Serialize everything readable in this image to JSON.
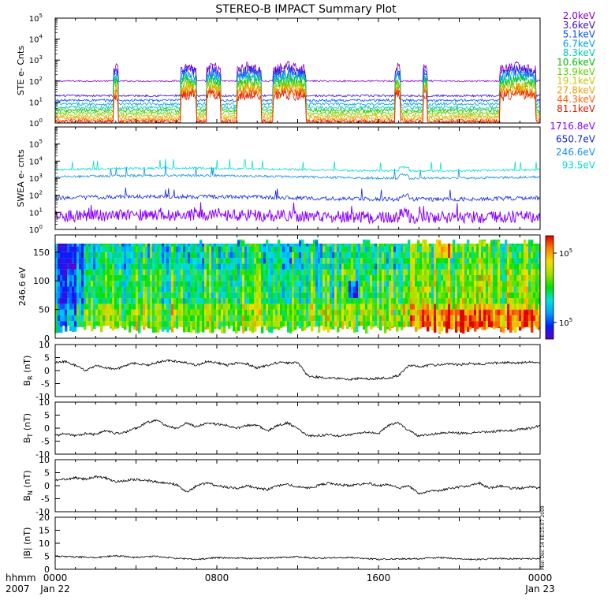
{
  "title": "STEREO-B IMPACT Summary Plot",
  "time_axis": {
    "header": [
      "hhmm",
      "2007"
    ],
    "ticks": [
      {
        "hour": 0,
        "hhmm": "0000",
        "date": "Jan 22"
      },
      {
        "hour": 8,
        "hhmm": "0800",
        "date": ""
      },
      {
        "hour": 16,
        "hhmm": "1600",
        "date": ""
      },
      {
        "hour": 24,
        "hhmm": "0000",
        "date": "Jan 23"
      }
    ]
  },
  "timestamp": "Mon Dec 14 08:25:07 2009",
  "colors": {
    "ste": [
      "#8a00c8",
      "#3c0cc8",
      "#0050ff",
      "#00a0e0",
      "#00c8b0",
      "#00c000",
      "#60d000",
      "#c8c800",
      "#f0a000",
      "#ff6400",
      "#e01800"
    ],
    "swea": [
      "#8a00ff",
      "#1028e0",
      "#1890e8",
      "#00e0d0"
    ],
    "colorbar": [
      "#5a00c8",
      "#0020ff",
      "#00a0ff",
      "#00e0e0",
      "#00e000",
      "#a0e000",
      "#f0e000",
      "#ff8000",
      "#e00000"
    ]
  },
  "chart_data": [
    {
      "type": "line",
      "name": "ste",
      "ylabel": "STE e- Cnts",
      "yscale": "log",
      "ylim": [
        1,
        100000
      ],
      "yticks": [
        {
          "v": 1,
          "m": "0"
        },
        {
          "v": 10,
          "m": "1"
        },
        {
          "v": 100,
          "m": "2"
        },
        {
          "v": 1000,
          "m": "3"
        },
        {
          "v": 10000,
          "m": "4"
        },
        {
          "v": 100000,
          "m": "5"
        }
      ],
      "series": [
        {
          "name": "2.0keV",
          "base": 100,
          "burst": 1.0,
          "noise": 0.04
        },
        {
          "name": "3.6keV",
          "base": 20,
          "burst": 0.95,
          "noise": 0.05
        },
        {
          "name": "5.1keV",
          "base": 12,
          "burst": 0.9,
          "noise": 0.06
        },
        {
          "name": "6.7keV",
          "base": 8,
          "burst": 0.85,
          "noise": 0.07
        },
        {
          "name": "8.3keV",
          "base": 5.5,
          "burst": 0.8,
          "noise": 0.08
        },
        {
          "name": "10.6keV",
          "base": 4,
          "burst": 0.75,
          "noise": 0.08
        },
        {
          "name": "13.9keV",
          "base": 3,
          "burst": 0.7,
          "noise": 0.09
        },
        {
          "name": "19.1keV",
          "base": 2.2,
          "burst": 0.65,
          "noise": 0.09
        },
        {
          "name": "27.8keV",
          "base": 1.7,
          "burst": 0.6,
          "noise": 0.1
        },
        {
          "name": "44.3keV",
          "base": 1.3,
          "burst": 0.55,
          "noise": 0.1
        },
        {
          "name": "81.1keV",
          "base": 1.1,
          "burst": 0.5,
          "noise": 0.1
        }
      ],
      "bursts": [
        [
          2.9,
          3.1
        ],
        [
          6.2,
          7.0
        ],
        [
          7.5,
          8.2
        ],
        [
          9.0,
          10.2
        ],
        [
          10.8,
          12.4
        ],
        [
          16.8,
          17.1
        ],
        [
          18.2,
          18.4
        ],
        [
          22.0,
          23.8
        ]
      ]
    },
    {
      "type": "line",
      "name": "swea",
      "ylabel": "SWEA e- cnts",
      "yscale": "log",
      "ylim": [
        1,
        1000000
      ],
      "yticks": [
        {
          "v": 1,
          "m": "0"
        },
        {
          "v": 10,
          "m": "1"
        },
        {
          "v": 100,
          "m": "2"
        },
        {
          "v": 1000,
          "m": "3"
        },
        {
          "v": 10000,
          "m": "4"
        },
        {
          "v": 100000,
          "m": "5"
        }
      ],
      "series": [
        {
          "name": "1716.8eV",
          "base": 6,
          "noise": 0.35
        },
        {
          "name": "650.7eV",
          "base": 70,
          "noise": 0.12
        },
        {
          "name": "246.6eV",
          "base": 1200,
          "noise": 0.07
        },
        {
          "name": "93.5eV",
          "base": 3200,
          "noise": 0.06
        }
      ]
    },
    {
      "type": "heatmap",
      "name": "pad",
      "ylabel": "246.6 eV",
      "ylim": [
        0,
        180
      ],
      "yticks": [
        0,
        50,
        100,
        150
      ],
      "colorbar_labels": [
        {
          "pos": "top",
          "base": "10",
          "exp": "5"
        },
        {
          "pos": "bottom",
          "base": "10",
          "exp": "5"
        }
      ]
    },
    {
      "type": "line",
      "name": "br",
      "ylabel": "B",
      "ylabel_sub": "R",
      "ylabel_unit": " (nT)",
      "ylim": [
        -10,
        10
      ],
      "yticks": [
        -10,
        -5,
        0,
        5,
        10
      ],
      "x": [
        0,
        0.5,
        1,
        1.5,
        2,
        2.5,
        3,
        3.5,
        4,
        4.5,
        5,
        5.5,
        6,
        6.5,
        7,
        7.5,
        8,
        8.5,
        9,
        9.5,
        10,
        10.5,
        11,
        11.5,
        12,
        12.5,
        13,
        13.5,
        14,
        14.5,
        15,
        15.5,
        16,
        16.5,
        17,
        17.5,
        18,
        18.5,
        19,
        19.5,
        20,
        20.5,
        21,
        21.5,
        22,
        22.5,
        23,
        23.5,
        24
      ],
      "y": [
        3,
        3.5,
        2,
        0,
        2,
        1,
        0.5,
        2,
        3,
        2,
        3,
        4,
        3.5,
        3,
        2,
        3.5,
        3,
        2,
        3,
        2.5,
        1,
        2,
        3,
        3,
        3,
        -2,
        -2.5,
        -3,
        -3,
        -3.5,
        -3,
        -3.2,
        -3,
        -2.8,
        -2,
        2,
        1.5,
        2,
        2.2,
        2.5,
        2.2,
        2.7,
        2.5,
        2.8,
        3,
        3,
        3,
        3.2,
        3
      ]
    },
    {
      "type": "line",
      "name": "bt",
      "ylabel": "B",
      "ylabel_sub": "T",
      "ylabel_unit": " (nT)",
      "ylim": [
        -10,
        10
      ],
      "yticks": [
        -10,
        -5,
        0,
        5,
        10
      ],
      "x": [
        0,
        0.5,
        1,
        1.5,
        2,
        2.5,
        3,
        3.5,
        4,
        4.5,
        5,
        5.5,
        6,
        6.5,
        7,
        7.5,
        8,
        8.5,
        9,
        9.5,
        10,
        10.5,
        11,
        11.5,
        12,
        12.5,
        13,
        13.5,
        14,
        14.5,
        15,
        15.5,
        16,
        16.5,
        17,
        17.5,
        18,
        18.5,
        19,
        19.5,
        20,
        20.5,
        21,
        21.5,
        22,
        22.5,
        23,
        23.5,
        24
      ],
      "y": [
        -3,
        -2,
        -3,
        -2,
        -2.5,
        -1,
        -2,
        -1.5,
        0,
        2,
        3,
        1,
        0,
        2,
        0.5,
        2,
        1.5,
        1,
        0,
        1,
        1,
        -1,
        1,
        2,
        0,
        -3,
        -3,
        -2.5,
        -3,
        -2.5,
        -2,
        -1.5,
        -2,
        1,
        2,
        -1,
        -3,
        -2.5,
        -2,
        -1.5,
        -2,
        -2,
        -1.5,
        -1.5,
        -1,
        -1,
        -0.5,
        0,
        1
      ]
    },
    {
      "type": "line",
      "name": "bn",
      "ylabel": "B",
      "ylabel_sub": "N",
      "ylabel_unit": " (nT)",
      "ylim": [
        -10,
        10
      ],
      "yticks": [
        -10,
        -5,
        0,
        5,
        10
      ],
      "x": [
        0,
        0.5,
        1,
        1.5,
        2,
        2.5,
        3,
        3.5,
        4,
        4.5,
        5,
        5.5,
        6,
        6.5,
        7,
        7.5,
        8,
        8.5,
        9,
        9.5,
        10,
        10.5,
        11,
        11.5,
        12,
        12.5,
        13,
        13.5,
        14,
        14.5,
        15,
        15.5,
        16,
        16.5,
        17,
        17.5,
        18,
        18.5,
        19,
        19.5,
        20,
        20.5,
        21,
        21.5,
        22,
        22.5,
        23,
        23.5,
        24
      ],
      "y": [
        2,
        2.5,
        3,
        2.5,
        3.5,
        3,
        1.5,
        2,
        2.5,
        2,
        1.5,
        1,
        0.5,
        -2.5,
        0,
        1,
        0,
        -0.5,
        -1,
        0,
        -1,
        -1.5,
        0,
        0.5,
        -0.5,
        -1,
        0,
        1,
        0.5,
        0,
        0.5,
        1,
        0,
        0.5,
        -1,
        0,
        -3,
        -2,
        -2,
        -1,
        -0.5,
        0,
        1,
        -1,
        0,
        -1,
        -1,
        -0.5,
        -1
      ]
    },
    {
      "type": "line",
      "name": "bmag",
      "ylabel": "|B| (nT)",
      "ylim": [
        0,
        20
      ],
      "yticks": [
        0,
        5,
        10,
        15,
        20
      ],
      "x": [
        0,
        1,
        2,
        3,
        4,
        5,
        6,
        7,
        8,
        9,
        10,
        11,
        12,
        13,
        14,
        15,
        16,
        17,
        18,
        19,
        20,
        21,
        22,
        23,
        24
      ],
      "y": [
        5,
        4.8,
        4.5,
        5.2,
        4.5,
        5,
        4.2,
        3.8,
        4.5,
        4.3,
        4.1,
        4.5,
        4.8,
        4.2,
        4.6,
        4.4,
        3.8,
        4,
        4.1,
        4.5,
        4,
        3.8,
        4.2,
        4,
        4
      ]
    }
  ]
}
